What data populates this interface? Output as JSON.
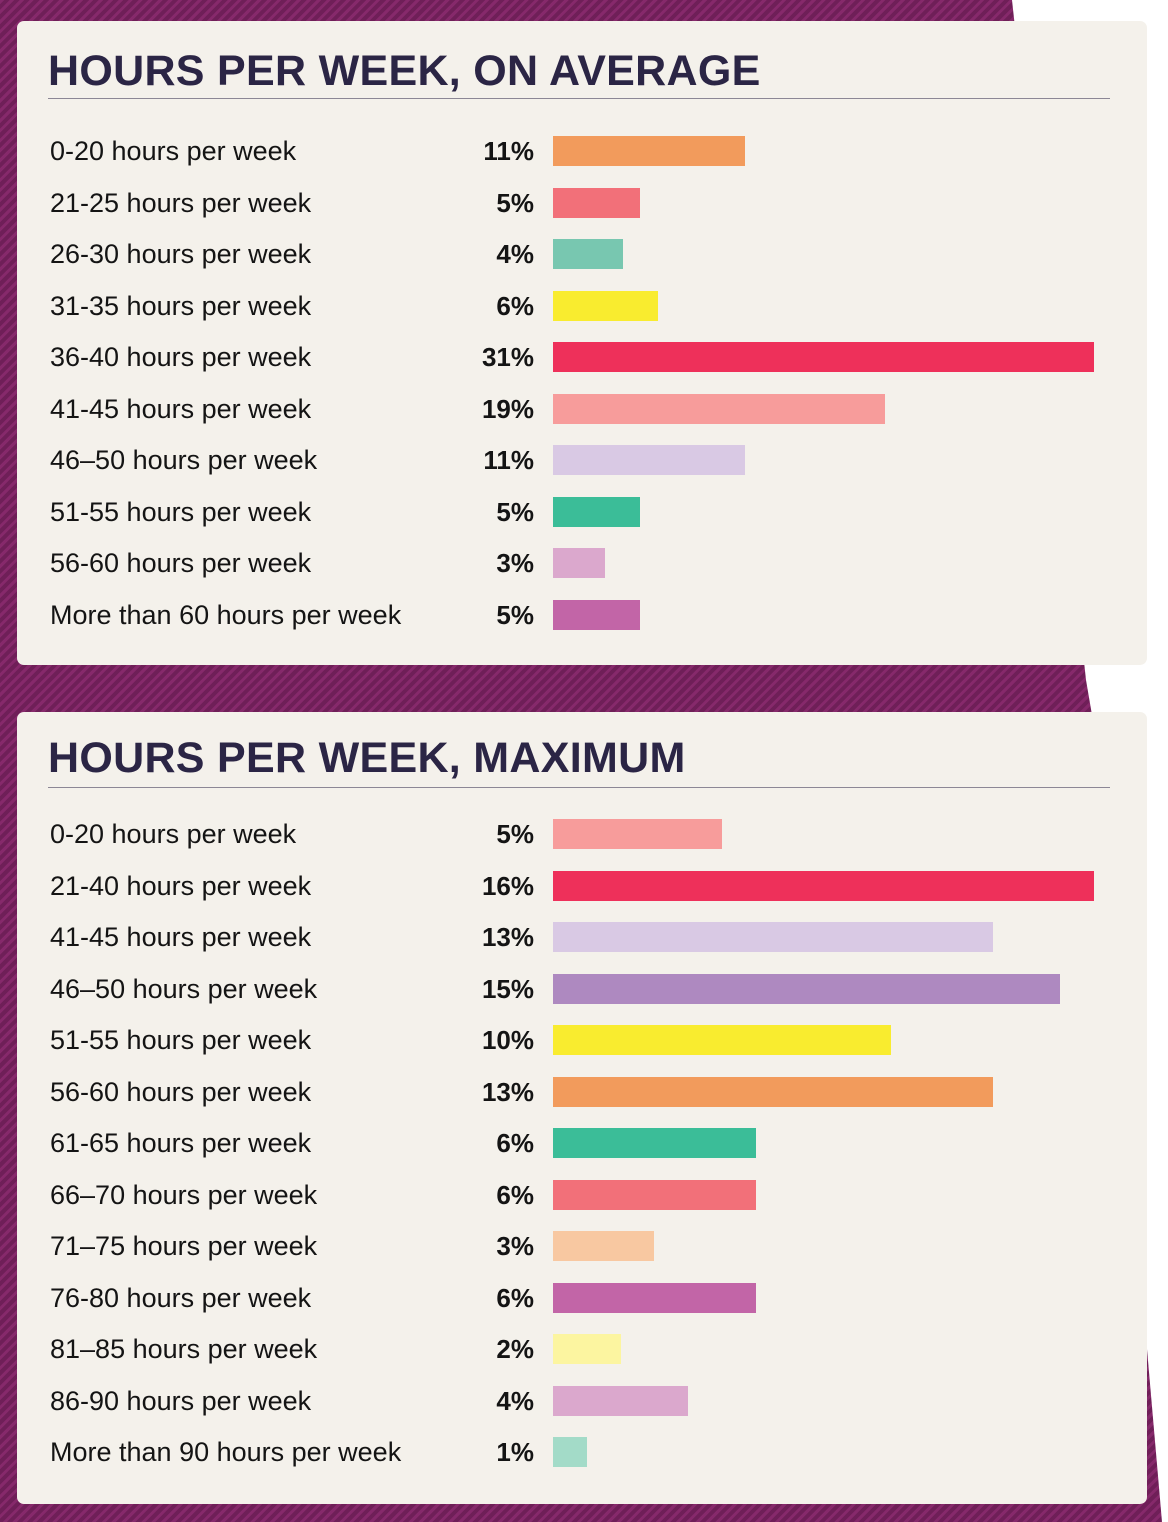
{
  "chart_data": [
    {
      "type": "bar",
      "orientation": "horizontal",
      "title": "HOURS PER WEEK, ON AVERAGE",
      "categories": [
        "0-20 hours per week",
        "21-25 hours per week",
        "26-30 hours per week",
        "31-35 hours per week",
        "36-40 hours per week",
        "41-45 hours per week",
        "46–50 hours per week",
        "51-55 hours per week",
        "56-60 hours per week",
        "More than 60 hours per week"
      ],
      "values": [
        11,
        5,
        4,
        6,
        31,
        19,
        11,
        5,
        3,
        5
      ],
      "value_labels": [
        "11%",
        "5%",
        "4%",
        "6%",
        "31%",
        "19%",
        "11%",
        "5%",
        "3%",
        "5%"
      ],
      "colors": [
        "#f29b5c",
        "#f27079",
        "#78c7b0",
        "#f9ec2f",
        "#ee305a",
        "#f79c9b",
        "#d9c9e4",
        "#3bbd98",
        "#dba8cd",
        "#c265a7"
      ],
      "xlim": [
        0,
        31
      ],
      "grid": false,
      "legend": "none"
    },
    {
      "type": "bar",
      "orientation": "horizontal",
      "title": "HOURS PER WEEK, MAXIMUM",
      "categories": [
        "0-20 hours per week",
        "21-40 hours per week",
        "41-45 hours per week",
        "46–50 hours per week",
        "51-55 hours per week",
        "56-60 hours per week",
        "61-65 hours per week",
        "66–70 hours per week",
        "71–75 hours per week",
        "76-80 hours per week",
        "81–85 hours per week",
        "86-90 hours per week",
        "More than 90 hours per week"
      ],
      "values": [
        5,
        16,
        13,
        15,
        10,
        13,
        6,
        6,
        3,
        6,
        2,
        4,
        1
      ],
      "value_labels": [
        "5%",
        "16%",
        "13%",
        "15%",
        "10%",
        "13%",
        "6%",
        "6%",
        "3%",
        "6%",
        "2%",
        "4%",
        "1%"
      ],
      "colors": [
        "#f79c9b",
        "#ee305a",
        "#d9c9e4",
        "#ae89c0",
        "#f9ec2f",
        "#f29b5c",
        "#3bbd98",
        "#f27079",
        "#f8c8a1",
        "#c265a7",
        "#fcf5a0",
        "#dba8cd",
        "#a3dbc8"
      ],
      "xlim": [
        0,
        16
      ],
      "grid": false,
      "legend": "none"
    }
  ]
}
